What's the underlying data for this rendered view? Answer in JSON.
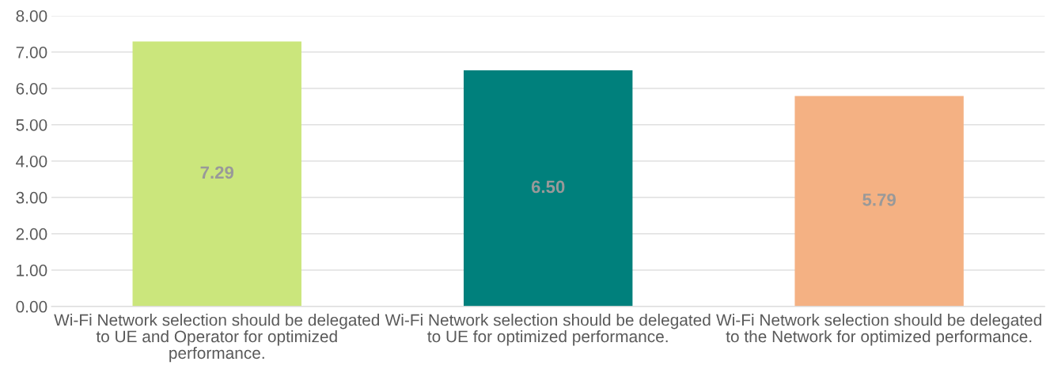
{
  "chart_data": {
    "type": "bar",
    "categories": [
      "Wi-Fi Network selection should be delegated to UE and Operator for optimized performance.",
      "Wi-Fi Network selection should be delegated to UE for optimized performance.",
      "Wi-Fi Network selection should be delegated to the Network for optimized performance."
    ],
    "values": [
      7.29,
      6.5,
      5.79
    ],
    "colors": [
      "#cbe67c",
      "#00807c",
      "#f4b183"
    ],
    "value_labels": [
      "7.29",
      "6.50",
      "5.79"
    ],
    "ylim": [
      0,
      8
    ],
    "yticks": [
      {
        "value": 0,
        "label": "0.00"
      },
      {
        "value": 1,
        "label": "1.00"
      },
      {
        "value": 2,
        "label": "2.00"
      },
      {
        "value": 3,
        "label": "3.00"
      },
      {
        "value": 4,
        "label": "4.00"
      },
      {
        "value": 5,
        "label": "5.00"
      },
      {
        "value": 6,
        "label": "6.00"
      },
      {
        "value": 7,
        "label": "7.00"
      },
      {
        "value": 8,
        "label": "8.00"
      }
    ],
    "grid": "y"
  }
}
